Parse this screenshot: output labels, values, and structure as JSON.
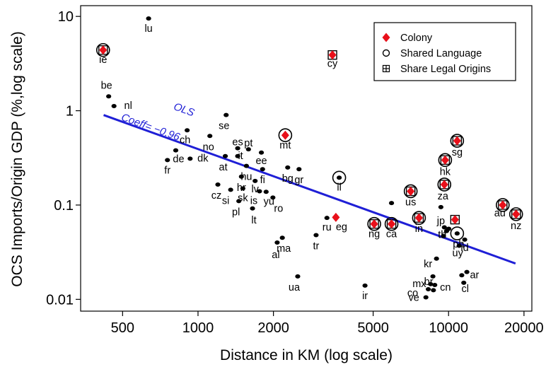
{
  "chart_data": {
    "type": "scatter",
    "xlabel": "Distance in KM (log scale)",
    "ylabel": "OCS Imports/Origin GDP (%,log scale)",
    "x_scale": "log",
    "y_scale": "log",
    "xlim": [
      340,
      21500
    ],
    "ylim": [
      0.0075,
      13.0
    ],
    "x_ticks": [
      500,
      1000,
      2000,
      5000,
      10000,
      20000
    ],
    "x_tick_labels": [
      "500",
      "1000",
      "2000",
      "5000",
      "10000",
      "20000"
    ],
    "y_ticks": [
      0.01,
      0.1,
      1,
      10
    ],
    "y_tick_labels": [
      "0.01",
      "0.1",
      "1",
      "10"
    ],
    "grid": false,
    "legend_position": "top-right",
    "legend": [
      {
        "label": "Colony",
        "marker": "red-diamond"
      },
      {
        "label": "Shared Language",
        "marker": "open-circle"
      },
      {
        "label": "Share Legal Origins",
        "marker": "boxed-plus"
      }
    ],
    "fit_line": {
      "label": "OLS",
      "annotation": "Coeff= −0.96",
      "x": [
        420,
        18500
      ],
      "y": [
        0.9,
        0.024
      ],
      "color": "#1f1fd6"
    },
    "colors": {
      "data": "#000000",
      "colony": "#e8101a",
      "fit": "#1f1fd6"
    },
    "points": [
      {
        "x": 418,
        "y": 4.4,
        "label": "ie",
        "lx": 0,
        "ly": 18,
        "colony": true,
        "language": true,
        "legal": true
      },
      {
        "x": 635,
        "y": 9.5,
        "label": "lu",
        "lx": 0,
        "ly": 19
      },
      {
        "x": 440,
        "y": 1.42,
        "label": "be",
        "lx": -3,
        "ly": -11
      },
      {
        "x": 462,
        "y": 1.12,
        "label": "nl",
        "lx": 20,
        "ly": 4
      },
      {
        "x": 905,
        "y": 0.62,
        "label": "ch",
        "lx": -3,
        "ly": 18
      },
      {
        "x": 1115,
        "y": 0.54,
        "label": "no",
        "lx": -2,
        "ly": 20
      },
      {
        "x": 1295,
        "y": 0.9,
        "label": "se",
        "lx": -3,
        "ly": 20
      },
      {
        "x": 815,
        "y": 0.38,
        "label": "de",
        "lx": 4,
        "ly": 17
      },
      {
        "x": 755,
        "y": 0.3,
        "label": "fr",
        "lx": 0,
        "ly": 19
      },
      {
        "x": 930,
        "y": 0.31,
        "label": "dk",
        "lx": 18,
        "ly": 4
      },
      {
        "x": 1285,
        "y": 0.33,
        "label": "at",
        "lx": -3,
        "ly": 20
      },
      {
        "x": 1440,
        "y": 0.4,
        "label": "es",
        "lx": 0,
        "ly": -4
      },
      {
        "x": 1590,
        "y": 0.39,
        "label": "pt",
        "lx": 0,
        "ly": -4
      },
      {
        "x": 1440,
        "y": 0.33,
        "label": "it",
        "lx": 4,
        "ly": 4
      },
      {
        "x": 1790,
        "y": 0.36,
        "label": "ee",
        "lx": 0,
        "ly": 16
      },
      {
        "x": 1560,
        "y": 0.26,
        "label": "hu",
        "lx": 0,
        "ly": 20
      },
      {
        "x": 1810,
        "y": 0.24,
        "label": "fi",
        "lx": 0,
        "ly": 20
      },
      {
        "x": 1200,
        "y": 0.165,
        "label": "cz",
        "lx": -2,
        "ly": 20
      },
      {
        "x": 1350,
        "y": 0.145,
        "label": "si",
        "lx": -7,
        "ly": 20
      },
      {
        "x": 1490,
        "y": 0.2,
        "label": "hr",
        "lx": 0,
        "ly": 20
      },
      {
        "x": 1510,
        "y": 0.15,
        "label": "sk",
        "lx": 0,
        "ly": 18
      },
      {
        "x": 1455,
        "y": 0.11,
        "label": "pl",
        "lx": -4,
        "ly": 20
      },
      {
        "x": 1690,
        "y": 0.18,
        "label": "lv",
        "lx": 0,
        "ly": 16
      },
      {
        "x": 1650,
        "y": 0.092,
        "label": "lt",
        "lx": 2,
        "ly": 21
      },
      {
        "x": 1760,
        "y": 0.14,
        "label": "is",
        "lx": -8,
        "ly": 18
      },
      {
        "x": 1870,
        "y": 0.138,
        "label": "yu",
        "lx": 4,
        "ly": 18
      },
      {
        "x": 1990,
        "y": 0.12,
        "label": "ro",
        "lx": 8,
        "ly": 20
      },
      {
        "x": 2230,
        "y": 0.55,
        "label": "mt",
        "lx": 0,
        "ly": 19,
        "colony": true,
        "language": true
      },
      {
        "x": 2280,
        "y": 0.25,
        "label": "bg",
        "lx": 0,
        "ly": 20
      },
      {
        "x": 2530,
        "y": 0.24,
        "label": "gr",
        "lx": 0,
        "ly": 20
      },
      {
        "x": 3440,
        "y": 3.9,
        "label": "cy",
        "lx": 0,
        "ly": 17,
        "colony": true,
        "legal": true
      },
      {
        "x": 3660,
        "y": 0.195,
        "label": "il",
        "lx": 0,
        "ly": 18,
        "language": true
      },
      {
        "x": 3270,
        "y": 0.073,
        "label": "ru",
        "lx": 0,
        "ly": 18
      },
      {
        "x": 3550,
        "y": 0.074,
        "label": "eg",
        "lx": 8,
        "ly": 18,
        "colony": true
      },
      {
        "x": 2170,
        "y": 0.045,
        "label": "ma",
        "lx": 2,
        "ly": 20
      },
      {
        "x": 2070,
        "y": 0.04,
        "label": "al",
        "lx": -2,
        "ly": 22
      },
      {
        "x": 2960,
        "y": 0.048,
        "label": "tr",
        "lx": 0,
        "ly": 20
      },
      {
        "x": 2500,
        "y": 0.0175,
        "label": "ua",
        "lx": -5,
        "ly": 20
      },
      {
        "x": 5050,
        "y": 0.063,
        "label": "ng",
        "lx": 0,
        "ly": 19,
        "colony": true,
        "language": true,
        "legal": true
      },
      {
        "x": 5920,
        "y": 0.063,
        "label": "ca",
        "lx": 0,
        "ly": 19,
        "colony": true,
        "language": true,
        "legal": true
      },
      {
        "x": 5920,
        "y": 0.105,
        "label": ""
      },
      {
        "x": 7060,
        "y": 0.14,
        "label": "us",
        "lx": 0,
        "ly": 20,
        "colony": true,
        "language": true,
        "legal": true
      },
      {
        "x": 7620,
        "y": 0.073,
        "label": "in",
        "lx": 0,
        "ly": 20,
        "colony": true,
        "language": true,
        "legal": true
      },
      {
        "x": 4640,
        "y": 0.014,
        "label": "ir",
        "lx": 0,
        "ly": 19
      },
      {
        "x": 9320,
        "y": 0.095,
        "label": "jp",
        "lx": 0,
        "ly": 24
      },
      {
        "x": 9620,
        "y": 0.165,
        "label": "za",
        "lx": -2,
        "ly": 21,
        "colony": true,
        "language": true,
        "legal": true
      },
      {
        "x": 9690,
        "y": 0.3,
        "label": "hk",
        "lx": 0,
        "ly": 21,
        "colony": true,
        "language": true,
        "legal": true
      },
      {
        "x": 10820,
        "y": 0.48,
        "label": "sg",
        "lx": 0,
        "ly": 21,
        "colony": true,
        "language": true,
        "legal": true
      },
      {
        "x": 9620,
        "y": 0.058,
        "label": "th",
        "lx": -3,
        "ly": 15
      },
      {
        "x": 9820,
        "y": 0.053,
        "label": ""
      },
      {
        "x": 10020,
        "y": 0.056,
        "label": ""
      },
      {
        "x": 9540,
        "y": 0.047,
        "label": ""
      },
      {
        "x": 10610,
        "y": 0.07,
        "label": "",
        "colony": true,
        "legal": true
      },
      {
        "x": 10820,
        "y": 0.05,
        "label": "ph",
        "lx": 2,
        "ly": 20,
        "language": true
      },
      {
        "x": 11600,
        "y": 0.043,
        "label": "id",
        "lx": 0,
        "ly": 16
      },
      {
        "x": 11020,
        "y": 0.037,
        "label": "uy",
        "lx": -2,
        "ly": 15
      },
      {
        "x": 8950,
        "y": 0.027,
        "label": "kr",
        "lx": -12,
        "ly": 12
      },
      {
        "x": 8660,
        "y": 0.0175,
        "label": "br",
        "lx": -6,
        "ly": 12
      },
      {
        "x": 8480,
        "y": 0.0145,
        "label": "mx",
        "lx": -16,
        "ly": 4
      },
      {
        "x": 8300,
        "y": 0.0128,
        "label": "co",
        "lx": -22,
        "ly": 10
      },
      {
        "x": 8810,
        "y": 0.0142,
        "label": "cn",
        "lx": 15,
        "ly": 8
      },
      {
        "x": 8700,
        "y": 0.0125,
        "label": ""
      },
      {
        "x": 8120,
        "y": 0.0105,
        "label": "ve",
        "lx": -17,
        "ly": 5
      },
      {
        "x": 11290,
        "y": 0.018,
        "label": "ar",
        "lx": 18,
        "ly": 4
      },
      {
        "x": 11830,
        "y": 0.0195,
        "label": ""
      },
      {
        "x": 11500,
        "y": 0.015,
        "label": "cl",
        "lx": 2,
        "ly": 13
      },
      {
        "x": 16450,
        "y": 0.1,
        "label": "au",
        "lx": -4,
        "ly": 16,
        "colony": true,
        "language": true,
        "legal": true
      },
      {
        "x": 18600,
        "y": 0.08,
        "label": "nz",
        "lx": 0,
        "ly": 21,
        "colony": true,
        "language": true,
        "legal": true
      }
    ]
  }
}
